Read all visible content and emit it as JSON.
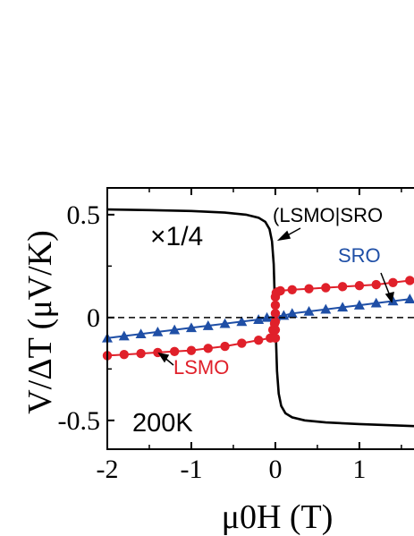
{
  "chart_data": {
    "type": "line",
    "xlabel": "μ0H (T)",
    "ylabel": "V/ΔT (μV/K)",
    "xlim": [
      -2,
      1.65
    ],
    "ylim": [
      -0.64,
      0.63
    ],
    "x_ticks": [
      -2,
      -1,
      0,
      1
    ],
    "x_tick_labels": [
      "-2",
      "-1",
      "0",
      "1"
    ],
    "y_ticks": [
      0.5,
      0,
      -0.5
    ],
    "y_tick_labels": [
      "0.5",
      "0",
      "-0.5"
    ],
    "zero_line": "dashed",
    "grid": false,
    "legend": "none",
    "annotations": {
      "scale": "×1/4",
      "temperature": "200K",
      "lsmo_sro": "(LSMO|SRO",
      "sro": "SRO",
      "lsmo": "LSMO"
    },
    "colors": {
      "lsmo_sro": "#000000",
      "sro": "#1f4fa6",
      "lsmo": "#e0202a"
    },
    "series": [
      {
        "name": "(LSMO|SRO",
        "marker": "none",
        "x": [
          -2.0,
          -1.5,
          -1.0,
          -0.6,
          -0.35,
          -0.2,
          -0.12,
          -0.07,
          -0.04,
          -0.02,
          0.0,
          0.02,
          0.04,
          0.07,
          0.12,
          0.2,
          0.35,
          0.6,
          1.0,
          1.65
        ],
        "y": [
          0.525,
          0.522,
          0.518,
          0.51,
          0.5,
          0.485,
          0.465,
          0.43,
          0.37,
          0.26,
          0.0,
          -0.26,
          -0.37,
          -0.43,
          -0.465,
          -0.485,
          -0.5,
          -0.51,
          -0.518,
          -0.528
        ]
      },
      {
        "name": "SRO",
        "marker": "triangle",
        "x": [
          -2.0,
          -1.8,
          -1.6,
          -1.4,
          -1.2,
          -1.0,
          -0.8,
          -0.6,
          -0.4,
          -0.2,
          -0.1,
          0.0,
          0.1,
          0.2,
          0.4,
          0.6,
          0.8,
          1.0,
          1.2,
          1.4,
          1.6
        ],
        "y": [
          -0.1,
          -0.09,
          -0.08,
          -0.07,
          -0.06,
          -0.05,
          -0.04,
          -0.03,
          -0.02,
          -0.01,
          0.0,
          0.005,
          0.01,
          0.02,
          0.03,
          0.04,
          0.05,
          0.06,
          0.07,
          0.08,
          0.09
        ]
      },
      {
        "name": "LSMO",
        "marker": "circle",
        "x": [
          -2.0,
          -1.8,
          -1.6,
          -1.4,
          -1.2,
          -1.0,
          -0.8,
          -0.6,
          -0.4,
          -0.2,
          -0.06,
          -0.03,
          -0.01,
          0.0,
          0.0,
          0.0,
          0.0,
          0.0,
          0.0,
          0.01,
          0.03,
          0.06,
          0.2,
          0.4,
          0.6,
          0.8,
          1.0,
          1.2,
          1.4,
          1.6
        ],
        "y": [
          -0.185,
          -0.18,
          -0.175,
          -0.17,
          -0.165,
          -0.16,
          -0.15,
          -0.14,
          -0.125,
          -0.11,
          -0.1,
          -0.06,
          -0.03,
          -0.1,
          -0.06,
          -0.02,
          0.02,
          0.06,
          0.1,
          0.12,
          0.125,
          0.13,
          0.135,
          0.14,
          0.145,
          0.15,
          0.155,
          0.16,
          0.17,
          0.18
        ]
      }
    ]
  }
}
